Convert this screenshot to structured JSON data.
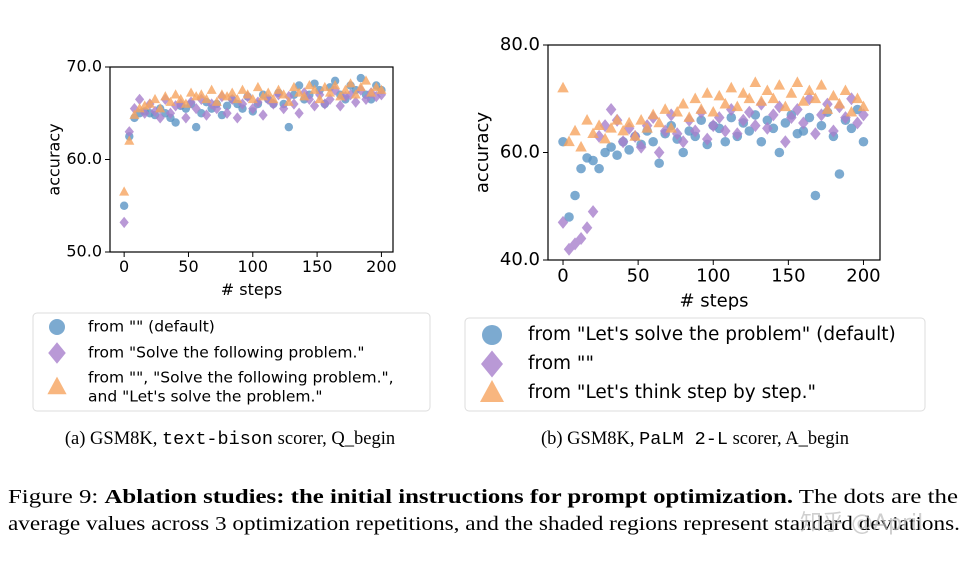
{
  "chart_data": [
    {
      "type": "scatter",
      "xlabel": "# steps",
      "ylabel": "accuracy",
      "xlim": [
        -11,
        209
      ],
      "ylim": [
        50,
        70
      ],
      "xticks": [
        0,
        50,
        100,
        150,
        200
      ],
      "yticks": [
        {
          "value": 50,
          "label": "50.0"
        },
        {
          "value": 60,
          "label": "60.0"
        },
        {
          "value": 70,
          "label": "70.0"
        }
      ],
      "x": [
        0,
        4,
        8,
        12,
        16,
        20,
        24,
        28,
        32,
        36,
        40,
        44,
        48,
        52,
        56,
        60,
        64,
        68,
        72,
        76,
        80,
        84,
        88,
        92,
        96,
        100,
        104,
        108,
        112,
        116,
        120,
        124,
        128,
        132,
        136,
        140,
        144,
        148,
        152,
        156,
        160,
        164,
        168,
        172,
        176,
        180,
        184,
        188,
        192,
        196,
        200
      ],
      "series": [
        {
          "name": "from \"\" (default)",
          "color": "#5b95c4",
          "marker": "circle",
          "values": [
            55,
            62.5,
            64.5,
            65,
            65.2,
            65,
            64.8,
            65.5,
            65,
            64.5,
            64,
            65.8,
            65.5,
            66,
            63.5,
            65,
            66.2,
            65.5,
            66,
            64.8,
            65.8,
            66.5,
            66,
            65.5,
            66.8,
            65.2,
            66,
            67,
            66.5,
            66,
            67.2,
            66,
            63.5,
            67,
            68,
            66.5,
            67,
            68.2,
            67.5,
            66,
            67.8,
            68.5,
            67,
            66.5,
            68,
            67.5,
            68.8,
            67,
            66.5,
            68,
            67.5
          ]
        },
        {
          "name": "from \"Solve the following problem.\"",
          "color": "#a77fcc",
          "marker": "diamond",
          "values": [
            53.2,
            63,
            65.5,
            66.5,
            65,
            66,
            65.2,
            64.5,
            66.5,
            65,
            65.8,
            66,
            64.5,
            66.2,
            65.5,
            66.5,
            64.8,
            66,
            65.5,
            66.8,
            65,
            66.5,
            64.5,
            66,
            66.8,
            65.5,
            66.2,
            64.8,
            66.5,
            66,
            67,
            65.5,
            66.8,
            66,
            65,
            67.2,
            66.5,
            65.8,
            67,
            66,
            66.5,
            67.5,
            65.8,
            66.8,
            67,
            66.2,
            67.5,
            66.5,
            67.2,
            66.8,
            67
          ]
        },
        {
          "name": "from \"\", \"Solve the following problem.\",\nand \"Let's solve the problem.\"",
          "color": "#f6a45f",
          "marker": "triangle",
          "values": [
            56.5,
            62,
            64.8,
            65.5,
            65.8,
            66,
            66.5,
            65.5,
            66.8,
            66.2,
            67,
            66.5,
            66,
            67.2,
            66.8,
            67,
            66.5,
            67.5,
            66.2,
            67,
            66.8,
            67.2,
            66.5,
            67.5,
            67,
            66.5,
            67.8,
            66.8,
            67.2,
            66.5,
            67.5,
            67,
            66.2,
            67.8,
            67.2,
            66.8,
            68,
            67.5,
            66.5,
            67.8,
            67.2,
            68,
            66.8,
            67.5,
            68.2,
            67,
            67.8,
            68.5,
            67.2,
            67.8,
            67.5
          ]
        }
      ],
      "caption": [
        "(a) GSM8K, ",
        "text-bison",
        " scorer, Q_begin"
      ]
    },
    {
      "type": "scatter",
      "xlabel": "# steps",
      "ylabel": "accuracy",
      "xlim": [
        -10,
        211
      ],
      "ylim": [
        40,
        80
      ],
      "xticks": [
        0,
        50,
        100,
        150,
        200
      ],
      "yticks": [
        {
          "value": 40,
          "label": "40.0"
        },
        {
          "value": 60,
          "label": "60.0"
        },
        {
          "value": 80,
          "label": "80.0"
        }
      ],
      "x": [
        0,
        4,
        8,
        12,
        16,
        20,
        24,
        28,
        32,
        36,
        40,
        44,
        48,
        52,
        56,
        60,
        64,
        68,
        72,
        76,
        80,
        84,
        88,
        92,
        96,
        100,
        104,
        108,
        112,
        116,
        120,
        124,
        128,
        132,
        136,
        140,
        144,
        148,
        152,
        156,
        160,
        164,
        168,
        172,
        176,
        180,
        184,
        188,
        192,
        196,
        200
      ],
      "series": [
        {
          "name": "from \"Let's solve the problem\" (default)",
          "color": "#5b95c4",
          "marker": "circle",
          "values": [
            62,
            48,
            52,
            57,
            59,
            58.5,
            57,
            60,
            61,
            59.5,
            62,
            60.5,
            63,
            61.5,
            64,
            62,
            58,
            63.5,
            65,
            62.5,
            60,
            64,
            63,
            66,
            61.5,
            65,
            64.5,
            62,
            66.5,
            63,
            65.5,
            64,
            67,
            62,
            66,
            64.5,
            60,
            65.5,
            67,
            63.5,
            64,
            66.5,
            52,
            65,
            67.5,
            63,
            56,
            66,
            64.5,
            68,
            62
          ]
        },
        {
          "name": "from \"\"",
          "color": "#a77fcc",
          "marker": "diamond",
          "values": [
            47,
            42,
            43,
            44,
            46,
            49,
            63,
            65,
            68,
            66,
            62,
            64.5,
            63,
            61,
            65,
            66.5,
            60,
            64,
            67,
            63.5,
            62,
            66,
            64,
            67.5,
            62.5,
            65,
            66.5,
            64,
            68,
            63.5,
            66,
            67.5,
            65,
            69,
            64.5,
            67,
            68.5,
            62,
            66.5,
            68,
            65.5,
            70,
            63.5,
            67,
            69,
            64,
            68.5,
            66.5,
            70,
            65.5,
            67
          ]
        },
        {
          "name": "from \"Let's think step by step.\"",
          "color": "#f6a45f",
          "marker": "triangle",
          "values": [
            72,
            62,
            64,
            61,
            66,
            63.5,
            65,
            62.5,
            64.5,
            66,
            64,
            65.5,
            63,
            66,
            64.5,
            67,
            65.5,
            68,
            64.5,
            67.5,
            69,
            66.5,
            70,
            68,
            71,
            67.5,
            70.5,
            69,
            72,
            68.5,
            71,
            70,
            73,
            69.5,
            71.5,
            70,
            72.5,
            68.5,
            71,
            73,
            69.5,
            71.5,
            70,
            72.5,
            68,
            70.5,
            69,
            71.5,
            67.5,
            70,
            68.5
          ]
        }
      ],
      "caption": [
        "(b) GSM8K, ",
        "PaLM 2-L",
        " scorer, A_begin"
      ]
    }
  ],
  "figure_caption": {
    "label": "Figure 9:",
    "title": "Ablation studies: the initial instructions for prompt optimization.",
    "lines": [
      "The dots are the",
      "average values across 3 optimization repetitions, and the shaded regions represent standard deviations."
    ]
  },
  "watermark": "知乎 @April"
}
